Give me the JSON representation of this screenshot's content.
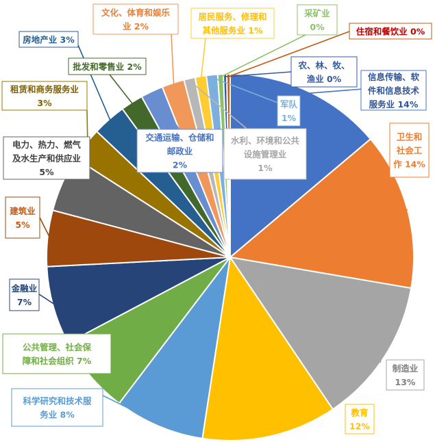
{
  "chart_data": {
    "type": "pie",
    "start_angle_deg": 0,
    "direction": "clockwise",
    "slices": [
      {
        "name": "信息传输、软件和信息技术服务业",
        "value": 14,
        "color": "#4472C4",
        "label_lines": [
          "信息传输、软",
          "件和信息技术",
          "服务业 14%"
        ]
      },
      {
        "name": "卫生和社会工作",
        "value": 14,
        "color": "#ED7D31",
        "label_lines": [
          "卫生和",
          "社会工",
          "作 14%"
        ]
      },
      {
        "name": "制造业",
        "value": 13,
        "color": "#A5A5A5",
        "label_lines": [
          "制造业",
          "13%"
        ]
      },
      {
        "name": "教育",
        "value": 12,
        "color": "#FFC000",
        "label_lines": [
          "教育",
          "12%"
        ]
      },
      {
        "name": "科学研究和技术服务业",
        "value": 8,
        "color": "#5B9BD5",
        "label_lines": [
          "科学研究和技术服",
          "务业 8%"
        ]
      },
      {
        "name": "公共管理、社会保障和社会组织",
        "value": 7,
        "color": "#70AD47",
        "label_lines": [
          "公共管理、社会保",
          "障和社会组织 7%"
        ]
      },
      {
        "name": "金融业",
        "value": 7,
        "color": "#264478",
        "label_lines": [
          "金融业",
          "7%"
        ]
      },
      {
        "name": "建筑业",
        "value": 5,
        "color": "#9E480E",
        "label_lines": [
          "建筑业",
          "5%"
        ]
      },
      {
        "name": "电力、热力、燃气及水生产和供应业",
        "value": 5,
        "color": "#636363",
        "label_lines": [
          "电力、热力、燃气",
          "及水生产和供应业",
          "5%"
        ]
      },
      {
        "name": "租赁和商务服务业",
        "value": 3,
        "color": "#997300",
        "label_lines": [
          "租赁和商务服务业",
          "3%"
        ]
      },
      {
        "name": "房地产业",
        "value": 3,
        "color": "#255E91",
        "label_lines": [
          "房地产业 3%"
        ]
      },
      {
        "name": "批发和零售业",
        "value": 2,
        "color": "#43682B",
        "label_lines": [
          "批发和零售业 2%"
        ]
      },
      {
        "name": "交通运输、仓储和邮政业",
        "value": 2,
        "color": "#698ED0",
        "label_lines": [
          "交通运输、仓储和",
          "邮政业",
          "2%"
        ]
      },
      {
        "name": "文化、体育和娱乐业",
        "value": 2,
        "color": "#F1975A",
        "label_lines": [
          "文化、体育和娱乐",
          "业 2%"
        ]
      },
      {
        "name": "水利、环境和公共设施管理业",
        "value": 1,
        "color": "#B7B7B7",
        "label_lines": [
          "水利、环境和公共",
          "设施管理业",
          "1%"
        ]
      },
      {
        "name": "居民服务、修理和其他服务业",
        "value": 1,
        "color": "#FFCD33",
        "label_lines": [
          "居民服务、修理和",
          "其他服务业 1%"
        ]
      },
      {
        "name": "军队",
        "value": 1,
        "color": "#7CAFDD",
        "label_lines": [
          "军队",
          "1%"
        ]
      },
      {
        "name": "采矿业",
        "value": 0.5,
        "color": "#8CC168",
        "label_lines": [
          "采矿业",
          "0%"
        ]
      },
      {
        "name": "农、林、牧、渔业",
        "value": 0.3,
        "color": "#335AA1",
        "label_lines": [
          "农、林、牧、",
          "渔业 0%"
        ]
      },
      {
        "name": "住宿和餐饮业",
        "value": 0.3,
        "color": "#C55A11",
        "label_lines": [
          "住宿和餐饮业 0%"
        ]
      }
    ]
  }
}
